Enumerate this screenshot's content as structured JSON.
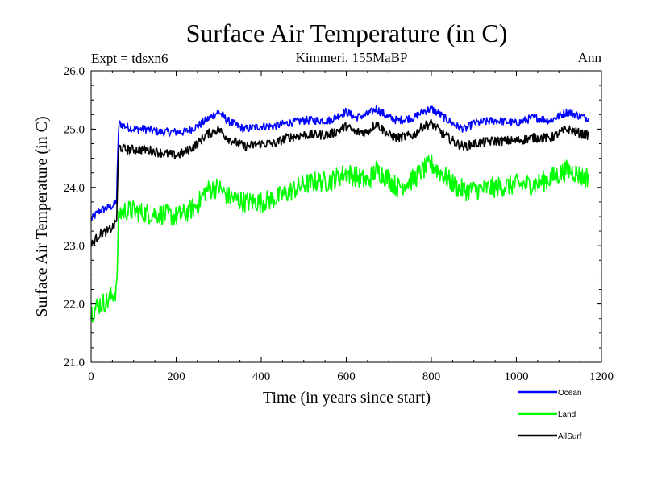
{
  "chart_data": {
    "type": "line",
    "title": "Surface Air Temperature (in C)",
    "subtitle_left": "Expt = tdsxn6",
    "subtitle_center": "Kimmeri. 155MaBP",
    "subtitle_right": "Ann",
    "xlabel": "Time (in years since start)",
    "ylabel": "Surface Air Temperature (in C)",
    "xlim": [
      0,
      1200
    ],
    "ylim": [
      21.0,
      26.0
    ],
    "xticks": [
      0,
      200,
      400,
      600,
      800,
      1000,
      1200
    ],
    "yticks": [
      "21.0",
      "22.0",
      "23.0",
      "24.0",
      "25.0",
      "26.0"
    ],
    "grid": false,
    "legend_position": "bottom-right",
    "series": [
      {
        "name": "Ocean",
        "color": "#0000ff",
        "x": [
          0,
          20,
          40,
          55,
          60,
          65,
          80,
          100,
          130,
          160,
          200,
          220,
          250,
          270,
          300,
          320,
          360,
          400,
          430,
          460,
          500,
          530,
          560,
          600,
          620,
          650,
          670,
          700,
          720,
          760,
          780,
          800,
          830,
          860,
          880,
          900,
          950,
          1000,
          1040,
          1080,
          1120,
          1140,
          1160,
          1170
        ],
        "values": [
          23.45,
          23.6,
          23.65,
          23.7,
          23.8,
          25.1,
          25.05,
          25.0,
          25.0,
          24.95,
          24.95,
          24.95,
          25.05,
          25.15,
          25.3,
          25.15,
          25.0,
          25.05,
          25.05,
          25.1,
          25.15,
          25.15,
          25.15,
          25.3,
          25.2,
          25.25,
          25.35,
          25.2,
          25.15,
          25.2,
          25.3,
          25.35,
          25.2,
          25.05,
          25.0,
          25.1,
          25.15,
          25.1,
          25.2,
          25.15,
          25.3,
          25.25,
          25.2,
          25.2
        ]
      },
      {
        "name": "Land",
        "color": "#00ff00",
        "x": [
          0,
          20,
          40,
          55,
          60,
          65,
          80,
          100,
          130,
          160,
          200,
          220,
          250,
          270,
          300,
          320,
          360,
          400,
          430,
          460,
          500,
          530,
          560,
          600,
          620,
          650,
          670,
          700,
          720,
          760,
          780,
          800,
          830,
          860,
          880,
          900,
          950,
          1000,
          1040,
          1080,
          1120,
          1140,
          1160,
          1170
        ],
        "values": [
          21.85,
          22.0,
          22.05,
          22.2,
          22.25,
          23.55,
          23.6,
          23.6,
          23.55,
          23.55,
          23.5,
          23.55,
          23.7,
          23.95,
          24.0,
          23.85,
          23.75,
          23.75,
          23.8,
          23.9,
          24.05,
          24.1,
          24.1,
          24.25,
          24.2,
          24.1,
          24.3,
          24.15,
          24.0,
          24.15,
          24.3,
          24.4,
          24.2,
          24.0,
          23.95,
          23.95,
          24.0,
          24.05,
          24.05,
          24.15,
          24.3,
          24.25,
          24.15,
          24.2
        ]
      },
      {
        "name": "AllSurf",
        "color": "#000000",
        "x": [
          0,
          20,
          40,
          55,
          60,
          65,
          80,
          100,
          130,
          160,
          200,
          220,
          250,
          270,
          300,
          320,
          360,
          400,
          430,
          460,
          500,
          530,
          560,
          600,
          620,
          650,
          670,
          700,
          720,
          760,
          780,
          800,
          830,
          860,
          880,
          900,
          950,
          1000,
          1040,
          1080,
          1120,
          1140,
          1160,
          1170
        ],
        "values": [
          23.0,
          23.2,
          23.25,
          23.35,
          23.45,
          24.7,
          24.65,
          24.65,
          24.65,
          24.6,
          24.55,
          24.6,
          24.75,
          24.9,
          25.0,
          24.85,
          24.7,
          24.75,
          24.75,
          24.85,
          24.9,
          24.9,
          24.9,
          25.05,
          24.95,
          24.95,
          25.1,
          24.9,
          24.85,
          24.9,
          25.05,
          25.1,
          24.9,
          24.75,
          24.7,
          24.75,
          24.8,
          24.8,
          24.85,
          24.85,
          25.0,
          24.95,
          24.9,
          24.9
        ]
      }
    ]
  }
}
